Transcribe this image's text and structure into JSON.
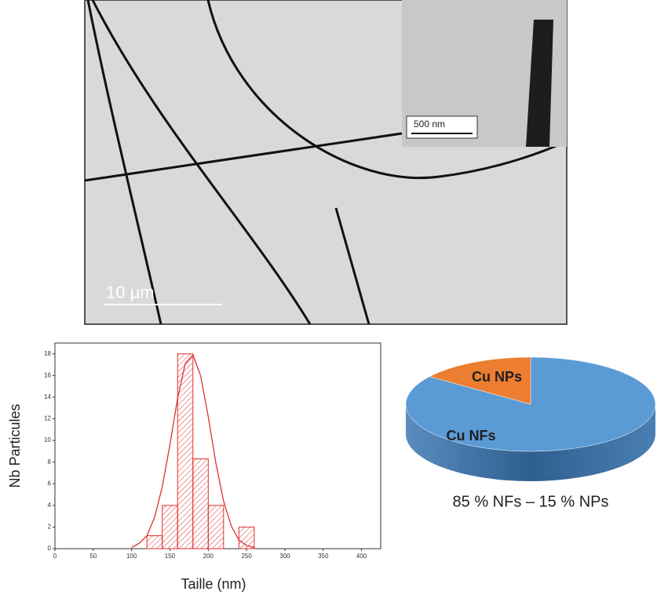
{
  "image": {
    "scale_bar": "10 μm",
    "inset_scale_bar": "500 nm"
  },
  "chart_data": [
    {
      "type": "histogram",
      "xlabel": "Taille (nm)",
      "ylabel": "Nb Particules",
      "bins": [
        120,
        140,
        160,
        180,
        200,
        220,
        240,
        260
      ],
      "values": [
        1.2,
        4,
        18,
        8.3,
        4,
        0,
        2
      ],
      "color": "#e03030",
      "fit": {
        "x": [
          100,
          110,
          120,
          130,
          140,
          150,
          160,
          170,
          180,
          190,
          200,
          210,
          220,
          230,
          240,
          250,
          260
        ],
        "values": [
          0.1,
          0.5,
          1.2,
          2.9,
          5.7,
          9.6,
          13.9,
          17.1,
          17.9,
          16.0,
          12.2,
          7.9,
          4.4,
          2.1,
          0.8,
          0.3,
          0.1
        ]
      },
      "xlim": [
        0,
        425
      ],
      "ylim": [
        0,
        19
      ],
      "xticks": [
        0,
        50,
        100,
        150,
        200,
        250,
        300,
        350,
        400
      ],
      "yticks": [
        0,
        2,
        4,
        6,
        8,
        10,
        12,
        14,
        16,
        18
      ]
    },
    {
      "type": "pie",
      "categories": [
        "Cu NFs",
        "Cu NPs"
      ],
      "values": [
        85,
        15
      ],
      "colors": [
        "#5b9bd5",
        "#ed7d31"
      ],
      "caption": "85 % NFs – 15 % NPs"
    }
  ]
}
